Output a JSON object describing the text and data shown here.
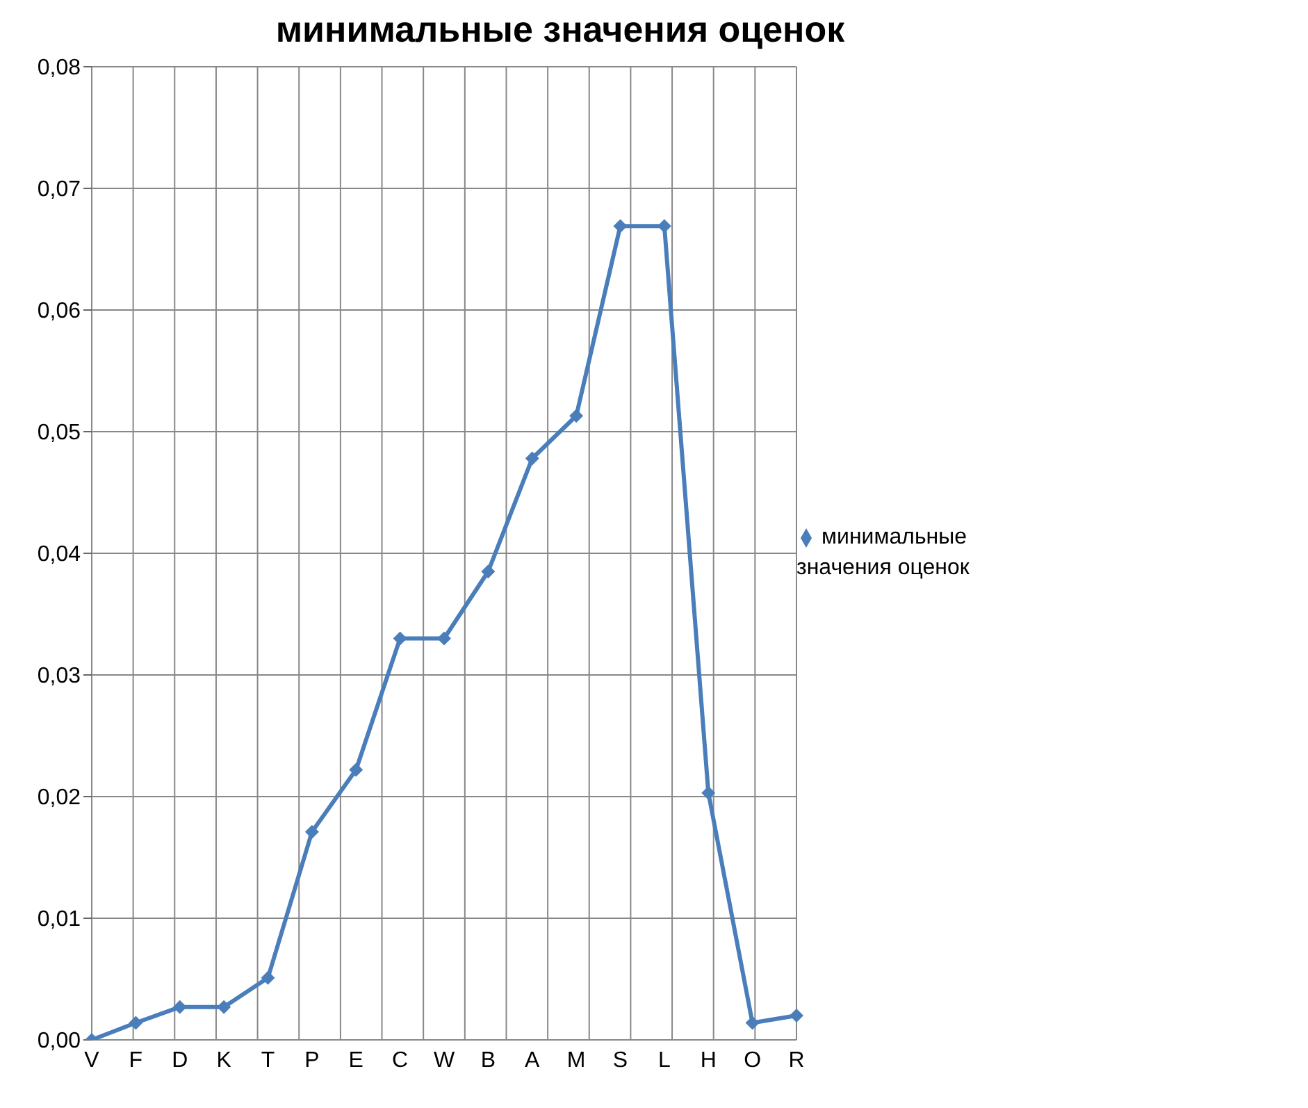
{
  "chart_data": {
    "type": "line",
    "title": "минимальные значения оценок",
    "categories": [
      "V",
      "F",
      "D",
      "K",
      "T",
      "P",
      "E",
      "C",
      "W",
      "B",
      "A",
      "M",
      "S",
      "L",
      "H",
      "O",
      "R"
    ],
    "series": [
      {
        "name": "минимальные значения оценок",
        "color": "#4a7ebb",
        "values": [
          0,
          0.0014,
          0.0027,
          0.0027,
          0.0051,
          0.0171,
          0.0222,
          0.033,
          0.033,
          0.0385,
          0.0478,
          0.0513,
          0.0669,
          0.0669,
          0.0203,
          0.0014,
          0.002
        ]
      }
    ],
    "ylim": [
      0,
      0.08
    ],
    "yticks": [
      {
        "value": 0,
        "label": "0,00"
      },
      {
        "value": 0.01,
        "label": "0,01"
      },
      {
        "value": 0.02,
        "label": "0,02"
      },
      {
        "value": 0.03,
        "label": "0,03"
      },
      {
        "value": 0.04,
        "label": "0,04"
      },
      {
        "value": 0.05,
        "label": "0,05"
      },
      {
        "value": 0.06,
        "label": "0,06"
      },
      {
        "value": 0.07,
        "label": "0,07"
      },
      {
        "value": 0.08,
        "label": "0,08"
      }
    ],
    "grid": true,
    "legend": "right",
    "marker": "diamond",
    "line_style": "solid"
  }
}
